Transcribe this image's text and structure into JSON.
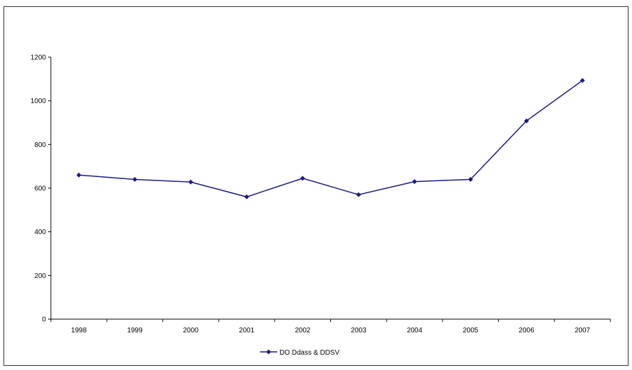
{
  "chart_data": {
    "type": "line",
    "title": "",
    "xlabel": "",
    "ylabel": "",
    "categories": [
      "1998",
      "1999",
      "2000",
      "2001",
      "2002",
      "2003",
      "2004",
      "2005",
      "2006",
      "2007"
    ],
    "series": [
      {
        "name": "DO Ddass & DDSV",
        "values": [
          660,
          640,
          628,
          560,
          645,
          570,
          630,
          640,
          908,
          1093
        ],
        "color": "#1a1a80"
      }
    ],
    "ylim": [
      0,
      1200
    ],
    "yticks": [
      "0",
      "200",
      "400",
      "600",
      "800",
      "1000",
      "1200"
    ],
    "grid": false,
    "legend": "bottom-center"
  }
}
